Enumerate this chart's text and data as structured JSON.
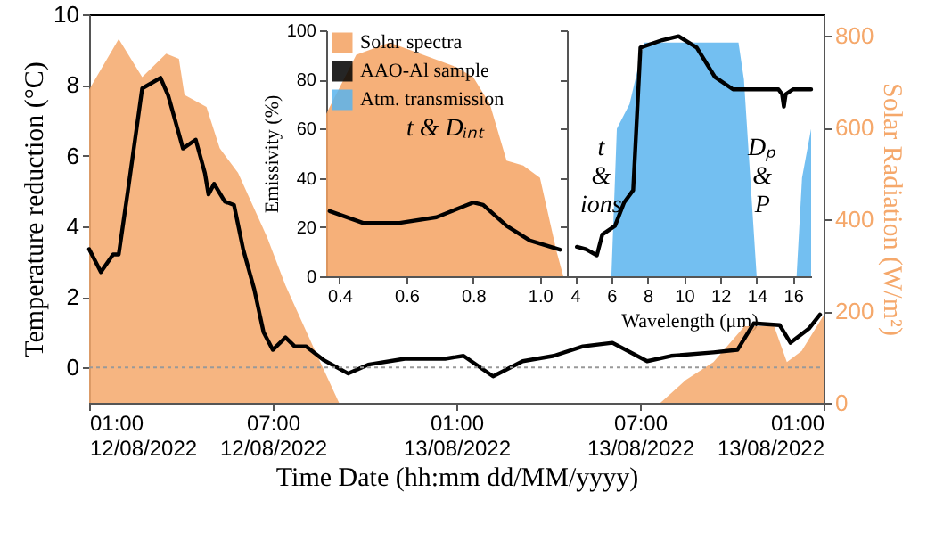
{
  "chart_data": [
    {
      "type": "line",
      "xlabel": "Time Date (hh:mm dd/MM/yyyy)",
      "ylabel": "Temperature reduction (°C)",
      "y2label": "Solar Radiation (W/m²)",
      "xlim": [
        "2022-08-12T01:00",
        "2022-08-13T01:00"
      ],
      "xticks": [
        {
          "value": "2022-08-12T01:00",
          "label": "01:00\n12/08/2022"
        },
        {
          "value": "2022-08-12T07:00",
          "label": "07:00\n12/08/2022"
        },
        {
          "value": "2022-08-12T13:00",
          "label": "01:00\n13/08/2022"
        },
        {
          "value": "2022-08-12T19:00",
          "label": "07:00\n13/08/2022"
        },
        {
          "value": "2022-08-13T01:00",
          "label": "01:00\n13/08/2022"
        }
      ],
      "ylim": [
        -1,
        10
      ],
      "yticks": [
        0,
        2,
        4,
        6,
        8,
        10
      ],
      "y2lim": [
        0,
        847
      ],
      "y2ticks": [
        0,
        200,
        400,
        600,
        800
      ],
      "ref_lines": [
        {
          "axis": "y",
          "value": 0,
          "color": "#999999",
          "line_style": "dotted"
        }
      ],
      "series": [
        {
          "type": "area",
          "axis": "y2",
          "color": "#f5a86b",
          "x": [
            "2022-08-12T01:00",
            "2022-08-12T01:58",
            "2022-08-12T02:44",
            "2022-08-12T03:31",
            "2022-08-12T03:56",
            "2022-08-12T04:07",
            "2022-08-12T04:50",
            "2022-08-12T05:16",
            "2022-08-12T05:52",
            "2022-08-12T06:49",
            "2022-08-12T07:25",
            "2022-08-12T08:23",
            "2022-08-12T09:10",
            "2022-08-12T19:40",
            "2022-08-12T20:30",
            "2022-08-12T21:24",
            "2022-08-12T22:25",
            "2022-08-12T23:23",
            "2022-08-12T23:48",
            "2022-08-13T00:17",
            "2022-08-13T01:00"
          ],
          "values": [
            683,
            793,
            710,
            761,
            750,
            671,
            645,
            555,
            501,
            361,
            256,
            113,
            0,
            0,
            50,
            89,
            167,
            167,
            89,
            113,
            191
          ]
        },
        {
          "color": "#000000",
          "x": [
            "2022-08-12T01:00",
            "2022-08-12T01:23",
            "2022-08-12T01:47",
            "2022-08-12T01:58",
            "2022-08-12T02:16",
            "2022-08-12T02:44",
            "2022-08-12T03:20",
            "2022-08-12T03:35",
            "2022-08-12T04:04",
            "2022-08-12T04:29",
            "2022-08-12T04:47",
            "2022-08-12T04:54",
            "2022-08-12T05:05",
            "2022-08-12T05:26",
            "2022-08-12T05:44",
            "2022-08-12T06:02",
            "2022-08-12T06:24",
            "2022-08-12T06:42",
            "2022-08-12T07:00",
            "2022-08-12T07:25",
            "2022-08-12T07:43",
            "2022-08-12T08:05",
            "2022-08-12T08:41",
            "2022-08-12T09:28",
            "2022-08-12T10:07",
            "2022-08-12T11:19",
            "2022-08-12T12:38",
            "2022-08-12T13:14",
            "2022-08-12T14:12",
            "2022-08-12T15:10",
            "2022-08-12T16:11",
            "2022-08-12T17:08",
            "2022-08-12T18:06",
            "2022-08-12T19:14",
            "2022-08-12T20:01",
            "2022-08-12T21:24",
            "2022-08-12T22:11",
            "2022-08-12T22:43",
            "2022-08-12T23:34",
            "2022-08-12T23:55",
            "2022-08-13T00:31",
            "2022-08-13T00:53"
          ],
          "values": [
            3.35,
            2.7,
            3.2,
            3.2,
            5.0,
            7.9,
            8.2,
            7.7,
            6.2,
            6.45,
            5.5,
            4.9,
            5.2,
            4.7,
            4.6,
            3.35,
            2.2,
            1.0,
            0.5,
            0.85,
            0.6,
            0.6,
            0.2,
            -0.17,
            0.08,
            0.25,
            0.25,
            0.33,
            -0.25,
            0.18,
            0.33,
            0.6,
            0.7,
            0.18,
            0.33,
            0.43,
            0.5,
            1.25,
            1.2,
            0.7,
            1.1,
            1.5
          ]
        }
      ]
    },
    {
      "type": "line",
      "ylabel": "Emissivity (%)",
      "xlim": [
        0.36,
        1.07
      ],
      "xticks": [
        0.4,
        0.6,
        0.8,
        {
          "value": 1,
          "label": "1.0"
        }
      ],
      "ylim": [
        0,
        100
      ],
      "yticks": [
        0,
        20,
        40,
        60,
        80,
        100
      ],
      "legend": "top left",
      "annotations": [
        "t & Dᵢₙₜ"
      ],
      "series": [
        {
          "type": "area",
          "name": "Solar spectra",
          "color": "#f4a261",
          "x": [
            0.36,
            0.45,
            0.55,
            0.65,
            0.75,
            0.8,
            0.85,
            0.9,
            0.95,
            1.0,
            1.05,
            1.07
          ],
          "values": [
            66,
            90,
            95,
            90,
            85,
            81,
            70,
            47,
            45,
            40,
            10,
            0
          ]
        },
        {
          "name": "AAO-Al sample",
          "color": "#000000",
          "x": [
            0.37,
            0.47,
            0.58,
            0.69,
            0.8,
            0.83,
            0.9,
            0.97,
            1.06
          ],
          "values": [
            26.5,
            21.7,
            21.7,
            24,
            30,
            29,
            20.5,
            14.5,
            10.8
          ]
        }
      ]
    },
    {
      "type": "line",
      "xlabel": "Wavelength (μm)",
      "xlim": [
        3.55,
        17
      ],
      "xticks": [
        4,
        6,
        8,
        10,
        12,
        14,
        16
      ],
      "ylim": [
        0,
        100
      ],
      "yticks": [
        0,
        20,
        40,
        60,
        80,
        100
      ],
      "tick_labels": "x",
      "legend": "top left",
      "annotations": [
        "t & ions",
        "Dₚ & P"
      ],
      "series": [
        {
          "type": "area",
          "name": "Atm. transmission",
          "color": "#5ab4ee",
          "x": [
            6.0,
            6.3,
            7.0,
            7.8,
            13.0,
            13.3,
            14.0,
            16.2,
            16.5,
            17
          ],
          "values": [
            0,
            60,
            70,
            95,
            95,
            80,
            0,
            0,
            40,
            60
          ]
        },
        {
          "color": "#000000",
          "x": [
            4.1,
            4.6,
            5.2,
            5.5,
            6.2,
            6.7,
            7.2,
            7.6,
            8.8,
            9.7,
            10.7,
            11.7,
            12.7,
            15.2,
            15.4,
            15.5,
            15.6,
            16,
            17
          ],
          "values": [
            12,
            11,
            8.5,
            17,
            20.5,
            30,
            35,
            93,
            96,
            97.6,
            93,
            81,
            76,
            76,
            74,
            69,
            74,
            76,
            76
          ]
        }
      ]
    }
  ]
}
